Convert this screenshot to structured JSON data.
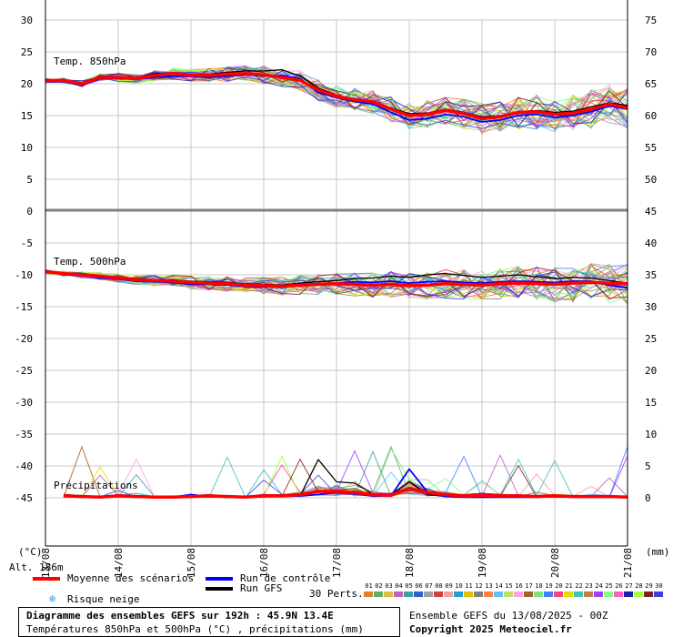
{
  "chart_data": {
    "type": "line",
    "x_dates": [
      "13/08",
      "14/08",
      "15/08",
      "16/08",
      "17/08",
      "18/08",
      "19/08",
      "20/08",
      "21/08"
    ],
    "left_axis": {
      "ticks": [
        30,
        25,
        20,
        15,
        10,
        5,
        0,
        -5,
        -10,
        -15,
        -20,
        -25,
        -30,
        -35,
        -40,
        -45
      ],
      "unit": "(°C)"
    },
    "right_axis": {
      "ticks": [
        75,
        70,
        65,
        60,
        55,
        50,
        45,
        40,
        35,
        30,
        25,
        20,
        15,
        10,
        5,
        0
      ],
      "unit": "(mm)"
    },
    "panels": [
      {
        "label": "Temp. 850hPa",
        "axis": "left",
        "x": [
          0,
          0.25,
          0.5,
          0.75,
          1,
          1.25,
          1.5,
          1.75,
          2,
          2.25,
          2.5,
          2.75,
          3,
          3.25,
          3.5,
          3.75,
          4,
          4.25,
          4.5,
          4.75,
          5,
          5.25,
          5.5,
          5.75,
          6,
          6.25,
          6.5,
          6.75,
          7,
          7.25,
          7.5,
          7.75,
          8
        ],
        "mean": [
          20.5,
          20.5,
          20,
          21,
          21,
          20.8,
          21.3,
          21.6,
          21.4,
          21.3,
          21.5,
          21.6,
          21.4,
          21,
          20.5,
          19,
          18,
          17.5,
          17.2,
          16,
          15,
          15.2,
          15.8,
          15.3,
          14.5,
          14.8,
          15.5,
          15.6,
          15.2,
          15.4,
          16,
          16.8,
          16.2
        ],
        "control": [
          20.3,
          20.3,
          19.8,
          20.8,
          20.8,
          20.7,
          21,
          21.2,
          21.2,
          21,
          21.2,
          21.4,
          21.2,
          21.3,
          20.8,
          18.6,
          17.8,
          17.2,
          16.8,
          15.5,
          14.3,
          14.5,
          15.2,
          14.8,
          14,
          14.3,
          15,
          15.2,
          14.7,
          15,
          15.6,
          16.5,
          16
        ],
        "gfs": [
          20.5,
          20.4,
          20.1,
          21.2,
          21.1,
          20.9,
          21.6,
          21.7,
          21.5,
          21.5,
          21.8,
          22,
          22,
          22.2,
          21.2,
          19.3,
          18.2,
          17.6,
          17,
          16.2,
          15.3,
          15.4,
          16,
          15.5,
          14.8,
          15,
          15.6,
          15.8,
          15.5,
          15.7,
          16.4,
          17,
          16.6
        ]
      },
      {
        "label": "Temp. 500hPa",
        "axis": "left",
        "x": [
          0,
          0.25,
          0.5,
          0.75,
          1,
          1.25,
          1.5,
          1.75,
          2,
          2.25,
          2.5,
          2.75,
          3,
          3.25,
          3.5,
          3.75,
          4,
          4.25,
          4.5,
          4.75,
          5,
          5.25,
          5.5,
          5.75,
          6,
          6.25,
          6.5,
          6.75,
          7,
          7.25,
          7.5,
          7.75,
          8
        ],
        "mean": [
          -9.5,
          -9.8,
          -10,
          -10.2,
          -10.5,
          -10.8,
          -10.9,
          -11,
          -11.2,
          -11.3,
          -11.4,
          -11.6,
          -11.7,
          -11.8,
          -11.6,
          -11.5,
          -11.4,
          -11.5,
          -11.6,
          -11.5,
          -11.7,
          -11.6,
          -11.4,
          -11.5,
          -11.6,
          -11.4,
          -11.3,
          -11.4,
          -11.5,
          -11.3,
          -11.2,
          -11.3,
          -11.4
        ],
        "control": [
          -9.6,
          -9.9,
          -10.1,
          -10.4,
          -10.7,
          -11,
          -11.1,
          -11.2,
          -11.5,
          -11.5,
          -11.6,
          -11.8,
          -11.9,
          -11.9,
          -11.7,
          -11.6,
          -11.3,
          -11.1,
          -11.2,
          -11,
          -11.3,
          -11.1,
          -11,
          -11.2,
          -11.3,
          -11.1,
          -11,
          -11.1,
          -11.2,
          -11,
          -11.1,
          -11.6,
          -12
        ],
        "gfs": [
          -9.4,
          -9.7,
          -9.9,
          -10.1,
          -10.4,
          -10.6,
          -10.8,
          -10.8,
          -11,
          -11.1,
          -11.2,
          -11.4,
          -11.5,
          -11.6,
          -11.3,
          -11.1,
          -10.9,
          -10.6,
          -10.5,
          -10.2,
          -10.4,
          -10,
          -9.8,
          -10.1,
          -10.4,
          -10.2,
          -10,
          -10.3,
          -10.6,
          -10.4,
          -10.5,
          -10.9,
          -11.3
        ]
      },
      {
        "label": "Précipitations",
        "axis": "right",
        "x": [
          0.25,
          0.5,
          0.75,
          1,
          1.25,
          1.5,
          1.75,
          2,
          2.25,
          2.5,
          2.75,
          3,
          3.25,
          3.5,
          3.75,
          4,
          4.25,
          4.5,
          4.75,
          5,
          5.25,
          5.5,
          5.75,
          6,
          6.25,
          6.5,
          6.75,
          7,
          7.25,
          7.5,
          7.75,
          8
        ],
        "mean": [
          0.3,
          0.2,
          0.1,
          0.3,
          0.2,
          0.1,
          0.1,
          0.2,
          0.3,
          0.2,
          0.1,
          0.3,
          0.3,
          0.5,
          1,
          1,
          0.8,
          0.5,
          0.4,
          1.5,
          0.8,
          0.5,
          0.3,
          0.4,
          0.3,
          0.3,
          0.2,
          0.3,
          0.2,
          0.2,
          0.2,
          0.1
        ],
        "control": [
          0.2,
          0.1,
          0.1,
          0.2,
          0.1,
          0.1,
          0.1,
          0.5,
          0.2,
          0.1,
          0.1,
          0.2,
          0.2,
          0.3,
          0.5,
          0.8,
          0.6,
          0.3,
          0.3,
          4.5,
          0.9,
          0.2,
          0.1,
          0.1,
          0.1,
          0.1,
          0.1,
          0.2,
          0.1,
          0.1,
          0.1,
          0.1
        ],
        "gfs": [
          0.2,
          0.1,
          0.1,
          0.3,
          0.2,
          0.1,
          0.1,
          0.2,
          0.2,
          0.1,
          0.1,
          0.2,
          0.3,
          0.3,
          6,
          2.5,
          2.3,
          0.6,
          0.5,
          2.5,
          0.5,
          0.2,
          0.1,
          0.1,
          0.1,
          0.1,
          0.1,
          0.2,
          0.1,
          0.1,
          0.1,
          0.1
        ]
      }
    ],
    "members": 30,
    "palette": [
      "#e08030",
      "#60b060",
      "#d8c040",
      "#c060c0",
      "#40a0a0",
      "#3060d0",
      "#a0a0a0",
      "#d04040",
      "#f0a0a0",
      "#20a0d0",
      "#e0c000",
      "#808080",
      "#ff8040",
      "#60c0ff",
      "#c0e060",
      "#ffa0e0",
      "#a06030",
      "#80e080",
      "#4080ff",
      "#ff4080",
      "#e0e000",
      "#40c0c0",
      "#c08040",
      "#a040ff",
      "#80ff80",
      "#ff60c0",
      "#2020a0",
      "#a0ff40",
      "#802020",
      "#4040e0"
    ]
  },
  "labels": {
    "alt": "Alt. 186m",
    "legend_mean": "Moyenne des scénarios",
    "legend_control": "Run de contrôle",
    "legend_gfs": "Run GFS",
    "legend_snow": "Risque neige",
    "perts": "30 Perts.",
    "perts_numbers": [
      "01",
      "02",
      "03",
      "04",
      "05",
      "06",
      "07",
      "08",
      "09",
      "10",
      "11",
      "12",
      "13",
      "14",
      "15",
      "16",
      "17",
      "18",
      "19",
      "20",
      "21",
      "22",
      "23",
      "24",
      "25",
      "26",
      "27",
      "28",
      "29",
      "30"
    ],
    "title": "Diagramme des ensembles GEFS sur 192h : 45.9N 13.4E",
    "subtitle": "Températures 850hPa et 500hPa (°C) , précipitations (mm)",
    "ensemble": "Ensemble GEFS du 13/08/2025 - 00Z",
    "copyright": "Copyright 2025 Meteociel.fr"
  },
  "colors": {
    "mean": "#ff0000",
    "control": "#0000ff",
    "gfs": "#000000",
    "grid": "#c8c8c8",
    "divider": "#808080",
    "snow": "#40a0e0"
  }
}
